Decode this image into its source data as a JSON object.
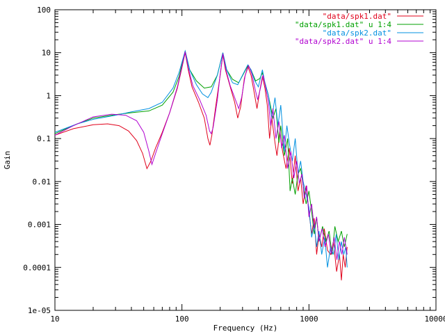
{
  "chart_data": {
    "type": "line",
    "title": "",
    "xlabel": "Frequency (Hz)",
    "ylabel": "Gain",
    "x_scale": "log",
    "y_scale": "log",
    "xlim": [
      10,
      10000
    ],
    "ylim": [
      1e-05,
      100
    ],
    "x_ticks": [
      "10",
      "100",
      "1000",
      "10000"
    ],
    "y_ticks": [
      "1e-05",
      "0.0001",
      "0.001",
      "0.01",
      "0.1",
      "1",
      "10",
      "100"
    ],
    "grid": false,
    "legend_position": "top-right",
    "series": [
      {
        "name": "\"data/spk1.dat\"",
        "color": "#e0001a",
        "points": [
          [
            10,
            0.12
          ],
          [
            14,
            0.17
          ],
          [
            20,
            0.21
          ],
          [
            26,
            0.22
          ],
          [
            32,
            0.2
          ],
          [
            38,
            0.15
          ],
          [
            44,
            0.09
          ],
          [
            49,
            0.045
          ],
          [
            53,
            0.02
          ],
          [
            57,
            0.03
          ],
          [
            62,
            0.06
          ],
          [
            70,
            0.14
          ],
          [
            80,
            0.4
          ],
          [
            92,
            1.5
          ],
          [
            100,
            4.5
          ],
          [
            106,
            10
          ],
          [
            112,
            4
          ],
          [
            120,
            1.6
          ],
          [
            135,
            0.7
          ],
          [
            150,
            0.3
          ],
          [
            160,
            0.1
          ],
          [
            166,
            0.07
          ],
          [
            172,
            0.12
          ],
          [
            185,
            0.6
          ],
          [
            200,
            3
          ],
          [
            210,
            9
          ],
          [
            220,
            4
          ],
          [
            240,
            1.6
          ],
          [
            260,
            0.7
          ],
          [
            275,
            0.3
          ],
          [
            290,
            0.55
          ],
          [
            310,
            2.5
          ],
          [
            330,
            4.8
          ],
          [
            350,
            3
          ],
          [
            370,
            1.2
          ],
          [
            390,
            0.5
          ],
          [
            410,
            1.3
          ],
          [
            430,
            2.8
          ],
          [
            450,
            1.5
          ],
          [
            470,
            0.6
          ],
          [
            490,
            0.1
          ],
          [
            510,
            0.3
          ],
          [
            540,
            0.08
          ],
          [
            560,
            0.04
          ],
          [
            590,
            0.15
          ],
          [
            620,
            0.05
          ],
          [
            660,
            0.02
          ],
          [
            700,
            0.06
          ],
          [
            740,
            0.009
          ],
          [
            780,
            0.04
          ],
          [
            820,
            0.006
          ],
          [
            860,
            0.012
          ],
          [
            900,
            0.003
          ],
          [
            950,
            0.008
          ],
          [
            1000,
            0.002
          ],
          [
            1050,
            0.0006
          ],
          [
            1100,
            0.0014
          ],
          [
            1150,
            0.0002
          ],
          [
            1200,
            0.0006
          ],
          [
            1260,
            0.0003
          ],
          [
            1320,
            0.0008
          ],
          [
            1400,
            0.00025
          ],
          [
            1480,
            0.0002
          ],
          [
            1560,
            0.0004
          ],
          [
            1650,
            8e-05
          ],
          [
            1740,
            0.0002
          ],
          [
            1800,
            5e-05
          ],
          [
            1860,
            0.0002
          ],
          [
            1930,
            0.0001
          ],
          [
            2000,
            0.0003
          ]
        ]
      },
      {
        "name": "\"data/spk1.dat\" u 1:4",
        "color": "#00a000",
        "points": [
          [
            10,
            0.13
          ],
          [
            15,
            0.22
          ],
          [
            20,
            0.3
          ],
          [
            30,
            0.36
          ],
          [
            40,
            0.4
          ],
          [
            55,
            0.44
          ],
          [
            70,
            0.6
          ],
          [
            85,
            1.2
          ],
          [
            95,
            2.8
          ],
          [
            106,
            11
          ],
          [
            115,
            4
          ],
          [
            130,
            2.2
          ],
          [
            150,
            1.5
          ],
          [
            170,
            1.6
          ],
          [
            190,
            3
          ],
          [
            210,
            10
          ],
          [
            225,
            4
          ],
          [
            250,
            2.4
          ],
          [
            280,
            2
          ],
          [
            310,
            3.5
          ],
          [
            330,
            5
          ],
          [
            350,
            4
          ],
          [
            380,
            2.2
          ],
          [
            410,
            2.5
          ],
          [
            430,
            3.4
          ],
          [
            450,
            2
          ],
          [
            480,
            1
          ],
          [
            520,
            0.3
          ],
          [
            550,
            0.5
          ],
          [
            580,
            0.08
          ],
          [
            600,
            0.2
          ],
          [
            640,
            0.04
          ],
          [
            680,
            0.1
          ],
          [
            710,
            0.006
          ],
          [
            740,
            0.012
          ],
          [
            780,
            0.005
          ],
          [
            820,
            0.015
          ],
          [
            860,
            0.02
          ],
          [
            900,
            0.008
          ],
          [
            950,
            0.003
          ],
          [
            1000,
            0.006
          ],
          [
            1050,
            0.002
          ],
          [
            1100,
            0.0006
          ],
          [
            1150,
            0.0015
          ],
          [
            1200,
            0.0004
          ],
          [
            1280,
            0.0009
          ],
          [
            1360,
            0.0004
          ],
          [
            1440,
            0.0007
          ],
          [
            1520,
            0.0002
          ],
          [
            1600,
            0.0009
          ],
          [
            1700,
            0.0004
          ],
          [
            1800,
            0.0007
          ],
          [
            1900,
            0.0003
          ],
          [
            2000,
            0.0006
          ]
        ]
      },
      {
        "name": "\"data/spk2.dat\"",
        "color": "#0090e0",
        "points": [
          [
            10,
            0.14
          ],
          [
            15,
            0.22
          ],
          [
            20,
            0.28
          ],
          [
            30,
            0.35
          ],
          [
            40,
            0.42
          ],
          [
            55,
            0.5
          ],
          [
            70,
            0.7
          ],
          [
            85,
            1.5
          ],
          [
            95,
            3.5
          ],
          [
            106,
            11
          ],
          [
            115,
            4
          ],
          [
            130,
            1.8
          ],
          [
            145,
            1.1
          ],
          [
            160,
            0.9
          ],
          [
            170,
            1.2
          ],
          [
            190,
            3
          ],
          [
            210,
            10
          ],
          [
            225,
            4
          ],
          [
            250,
            2
          ],
          [
            275,
            1.8
          ],
          [
            300,
            3
          ],
          [
            330,
            5.2
          ],
          [
            350,
            4
          ],
          [
            375,
            2.2
          ],
          [
            400,
            1.6
          ],
          [
            430,
            4
          ],
          [
            450,
            2
          ],
          [
            480,
            1
          ],
          [
            510,
            0.3
          ],
          [
            540,
            0.9
          ],
          [
            570,
            0.2
          ],
          [
            600,
            0.6
          ],
          [
            640,
            0.05
          ],
          [
            670,
            0.2
          ],
          [
            700,
            0.08
          ],
          [
            740,
            0.03
          ],
          [
            780,
            0.1
          ],
          [
            820,
            0.015
          ],
          [
            860,
            0.03
          ],
          [
            900,
            0.01
          ],
          [
            950,
            0.005
          ],
          [
            1000,
            0.0025
          ],
          [
            1050,
            0.0005
          ],
          [
            1100,
            0.001
          ],
          [
            1150,
            0.0003
          ],
          [
            1200,
            0.0007
          ],
          [
            1260,
            0.0002
          ],
          [
            1330,
            0.0005
          ],
          [
            1400,
            0.0001
          ],
          [
            1480,
            0.0003
          ],
          [
            1560,
            0.0002
          ],
          [
            1640,
            0.0006
          ],
          [
            1720,
            0.00015
          ],
          [
            1800,
            0.0004
          ],
          [
            1880,
            0.0002
          ],
          [
            1950,
            0.0003
          ],
          [
            2000,
            0.0001
          ]
        ]
      },
      {
        "name": "\"data/spk2.dat\" u 1:4",
        "color": "#b000d0",
        "points": [
          [
            10,
            0.12
          ],
          [
            14,
            0.2
          ],
          [
            20,
            0.32
          ],
          [
            28,
            0.37
          ],
          [
            36,
            0.35
          ],
          [
            44,
            0.26
          ],
          [
            50,
            0.14
          ],
          [
            55,
            0.05
          ],
          [
            58,
            0.025
          ],
          [
            62,
            0.045
          ],
          [
            70,
            0.13
          ],
          [
            80,
            0.4
          ],
          [
            92,
            1.6
          ],
          [
            100,
            4.8
          ],
          [
            106,
            10.5
          ],
          [
            112,
            4.5
          ],
          [
            122,
            1.7
          ],
          [
            138,
            0.8
          ],
          [
            155,
            0.35
          ],
          [
            165,
            0.15
          ],
          [
            170,
            0.13
          ],
          [
            176,
            0.18
          ],
          [
            190,
            0.8
          ],
          [
            200,
            3.2
          ],
          [
            210,
            9.5
          ],
          [
            222,
            4
          ],
          [
            240,
            1.7
          ],
          [
            260,
            0.9
          ],
          [
            280,
            0.5
          ],
          [
            295,
            0.9
          ],
          [
            315,
            3
          ],
          [
            335,
            5
          ],
          [
            355,
            3.2
          ],
          [
            375,
            1.5
          ],
          [
            395,
            0.8
          ],
          [
            415,
            1.5
          ],
          [
            435,
            3
          ],
          [
            455,
            1.6
          ],
          [
            480,
            0.7
          ],
          [
            500,
            0.2
          ],
          [
            520,
            0.5
          ],
          [
            550,
            0.1
          ],
          [
            580,
            0.25
          ],
          [
            610,
            0.06
          ],
          [
            640,
            0.12
          ],
          [
            680,
            0.02
          ],
          [
            720,
            0.05
          ],
          [
            760,
            0.012
          ],
          [
            800,
            0.03
          ],
          [
            840,
            0.009
          ],
          [
            880,
            0.015
          ],
          [
            920,
            0.004
          ],
          [
            960,
            0.008
          ],
          [
            1000,
            0.0015
          ],
          [
            1050,
            0.003
          ],
          [
            1100,
            0.0008
          ],
          [
            1150,
            0.0015
          ],
          [
            1200,
            0.0004
          ],
          [
            1270,
            0.0008
          ],
          [
            1340,
            0.0003
          ],
          [
            1420,
            0.0006
          ],
          [
            1500,
            0.0002
          ],
          [
            1580,
            0.0005
          ],
          [
            1660,
            0.00015
          ],
          [
            1740,
            0.0004
          ],
          [
            1820,
            0.0002
          ],
          [
            1900,
            0.0005
          ],
          [
            2000,
            0.0002
          ]
        ]
      }
    ]
  }
}
